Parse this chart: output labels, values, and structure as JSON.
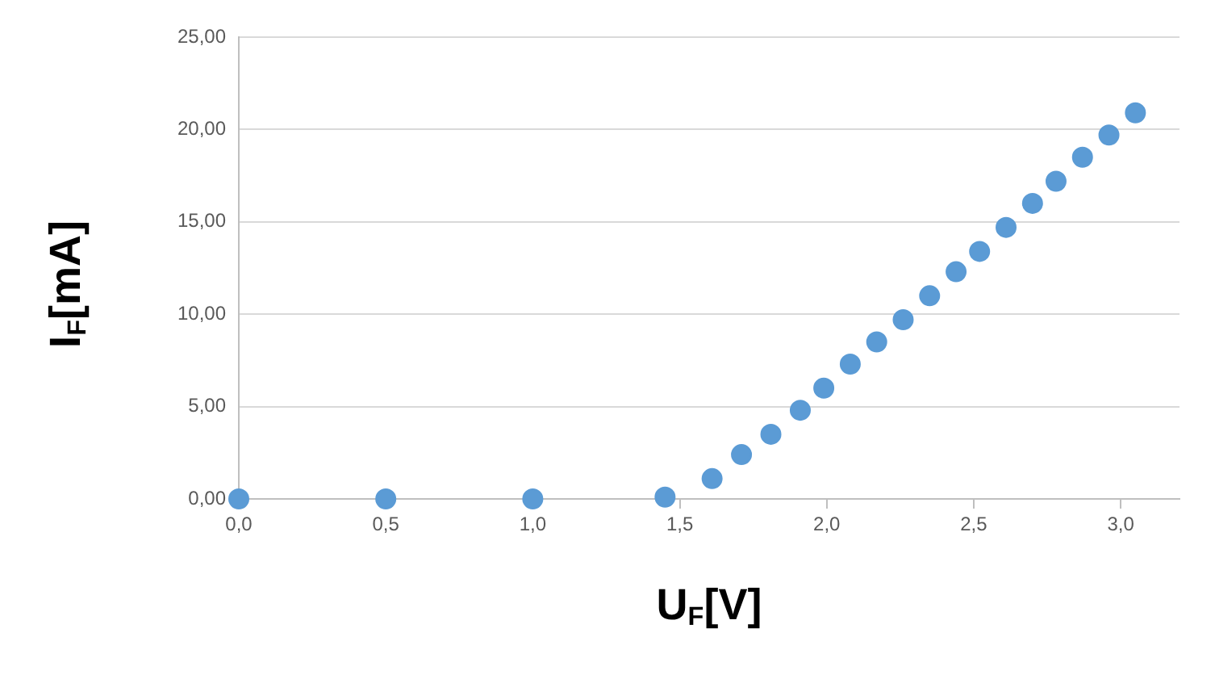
{
  "chart_data": {
    "type": "scatter",
    "xlabel": "U$_{F}$[V]",
    "ylabel": "I$_{F}$[mA]",
    "x": [
      0,
      0.5,
      1.0,
      1.45,
      1.61,
      1.71,
      1.81,
      1.91,
      1.99,
      2.08,
      2.17,
      2.26,
      2.35,
      2.44,
      2.52,
      2.61,
      2.7,
      2.78,
      2.87,
      2.96,
      3.05
    ],
    "series": [
      {
        "color": "#5b9bd5",
        "values": [
          0,
          0,
          0,
          0.1,
          1.1,
          2.4,
          3.5,
          4.8,
          6.0,
          7.3,
          8.5,
          9.7,
          11.0,
          12.3,
          13.4,
          14.7,
          16.0,
          17.2,
          18.5,
          19.7,
          20.9
        ]
      }
    ],
    "xlim": [
      0,
      3.2
    ],
    "xticks": [
      {
        "value": 0,
        "label": "0,0"
      },
      {
        "value": 0.5,
        "label": "0,5"
      },
      {
        "value": 1,
        "label": "1,0"
      },
      {
        "value": 1.5,
        "label": "1,5"
      },
      {
        "value": 2,
        "label": "2,0"
      },
      {
        "value": 2.5,
        "label": "2,5"
      },
      {
        "value": 3,
        "label": "3,0"
      }
    ],
    "ylim": [
      0,
      25
    ],
    "yticks": [
      {
        "value": 0,
        "label": "0,00"
      },
      {
        "value": 5,
        "label": "5,00"
      },
      {
        "value": 10,
        "label": "10,00"
      },
      {
        "value": 15,
        "label": "15,00"
      },
      {
        "value": 20,
        "label": "20,00"
      },
      {
        "value": 25,
        "label": "25,00"
      }
    ],
    "grid": "y",
    "marker": "circle",
    "legend": false
  }
}
